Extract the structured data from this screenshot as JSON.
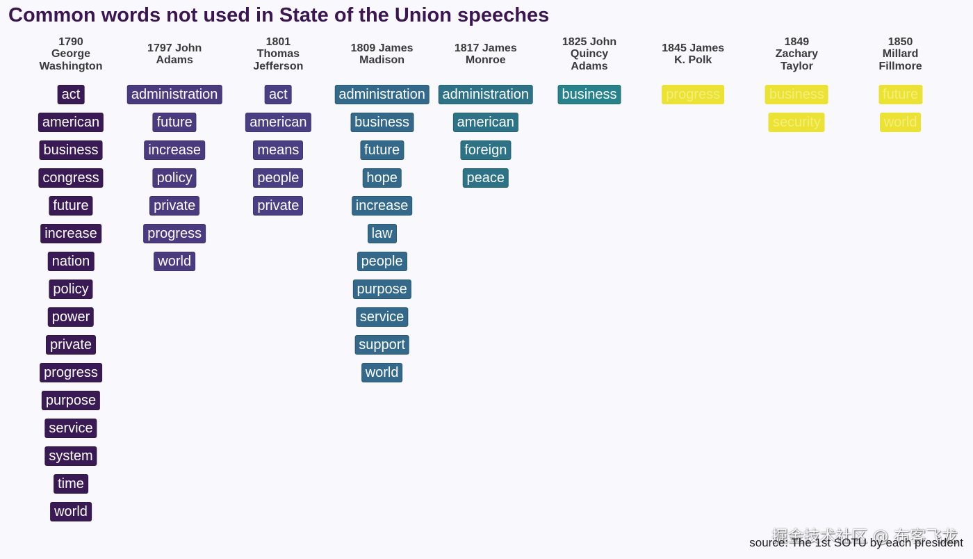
{
  "chart_data": {
    "type": "table",
    "title": "Common words not used in State of the Union speeches",
    "caption": "source: The 1st SOTU by each president",
    "watermark": "掘金技术社区 @ 布客飞龙",
    "columns": [
      {
        "header": "1790\nGeorge\nWashington",
        "color": "#3a1a55",
        "words": [
          "act",
          "american",
          "business",
          "congress",
          "future",
          "increase",
          "nation",
          "policy",
          "power",
          "private",
          "progress",
          "purpose",
          "service",
          "system",
          "time",
          "world"
        ]
      },
      {
        "header": "1797 John\nAdams",
        "color": "#4a3a80",
        "words": [
          "administration",
          "future",
          "increase",
          "policy",
          "private",
          "progress",
          "world"
        ]
      },
      {
        "header": "1801\nThomas\nJefferson",
        "color": "#4a3f84",
        "words": [
          "act",
          "american",
          "means",
          "people",
          "private"
        ]
      },
      {
        "header": "1809 James\nMadison",
        "color": "#33698a",
        "words": [
          "administration",
          "business",
          "future",
          "hope",
          "increase",
          "law",
          "people",
          "purpose",
          "service",
          "support",
          "world"
        ]
      },
      {
        "header": "1817 James\nMonroe",
        "color": "#2d7388",
        "words": [
          "administration",
          "american",
          "foreign",
          "peace"
        ]
      },
      {
        "header": "1825 John\nQuincy\nAdams",
        "color": "#26838b",
        "words": [
          "business"
        ]
      },
      {
        "header": "1845 James\nK. Polk",
        "color": "#ebe234",
        "words": [
          "progress"
        ]
      },
      {
        "header": "1849\nZachary\nTaylor",
        "color": "#ebe234",
        "words": [
          "business",
          "security"
        ]
      },
      {
        "header": "1850\nMillard\nFillmore",
        "color": "#ebe234",
        "words": [
          "future",
          "world"
        ]
      }
    ]
  }
}
